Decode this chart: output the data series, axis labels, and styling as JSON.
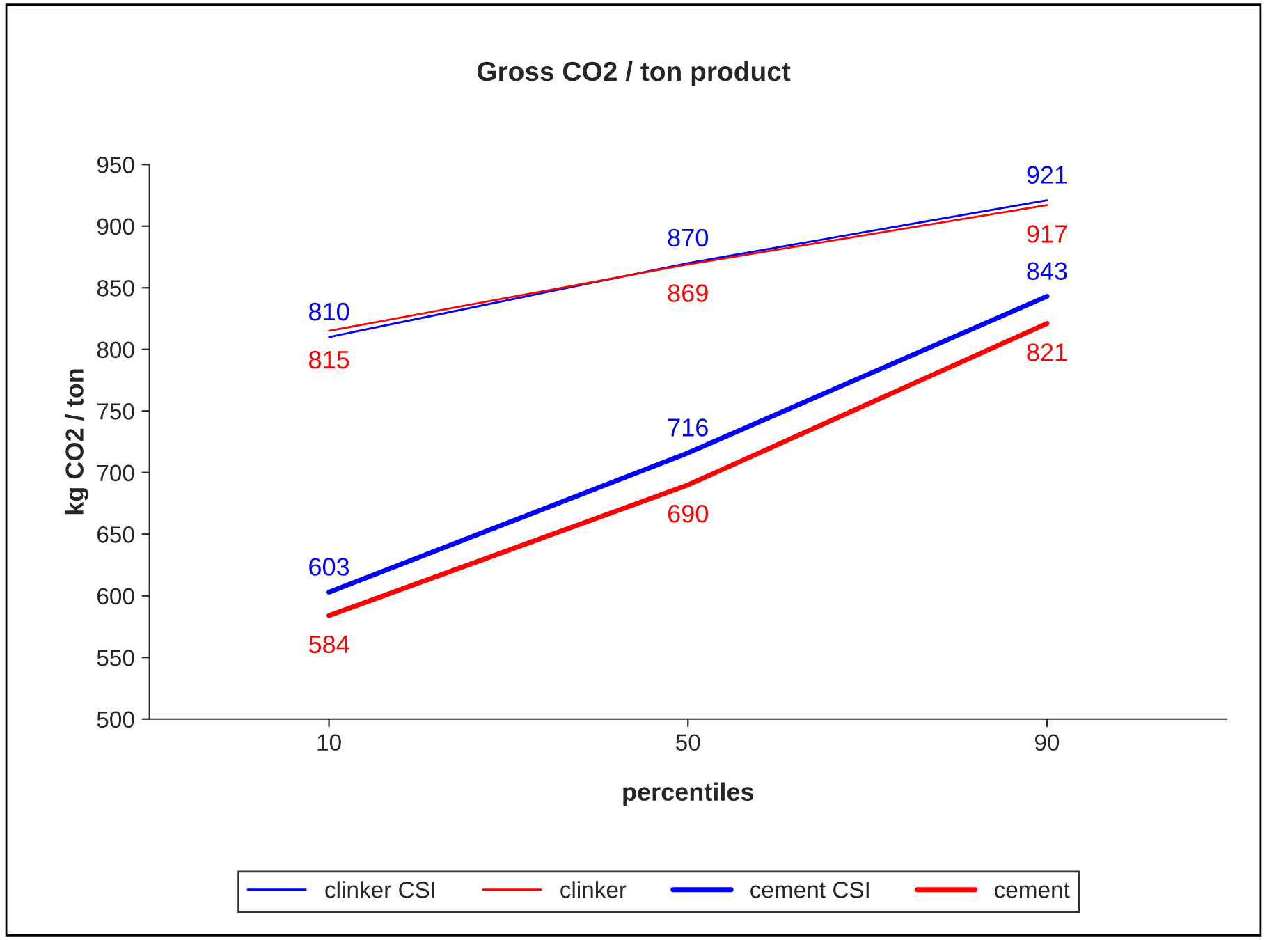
{
  "chart_data": {
    "type": "line",
    "title": "Gross CO2 / ton product",
    "xlabel": "percentiles",
    "ylabel": "kg CO2 / ton",
    "categories": [
      "10",
      "50",
      "90"
    ],
    "series": [
      {
        "name": "clinker CSI",
        "color": "#0000ff",
        "values": [
          810,
          870,
          921
        ]
      },
      {
        "name": "clinker",
        "color": "#ff0000",
        "values": [
          815,
          869,
          917
        ]
      },
      {
        "name": "cement CSI",
        "color": "#0000ff",
        "values": [
          603,
          716,
          843
        ]
      },
      {
        "name": "cement",
        "color": "#ff0000",
        "values": [
          584,
          690,
          821
        ]
      }
    ],
    "ylim": [
      500,
      950
    ],
    "yticks": [
      500,
      550,
      600,
      650,
      700,
      750,
      800,
      850,
      900,
      950
    ],
    "data_labels": true,
    "legend": "bottom",
    "grid": false,
    "marker": "none",
    "line_style": "solid"
  }
}
